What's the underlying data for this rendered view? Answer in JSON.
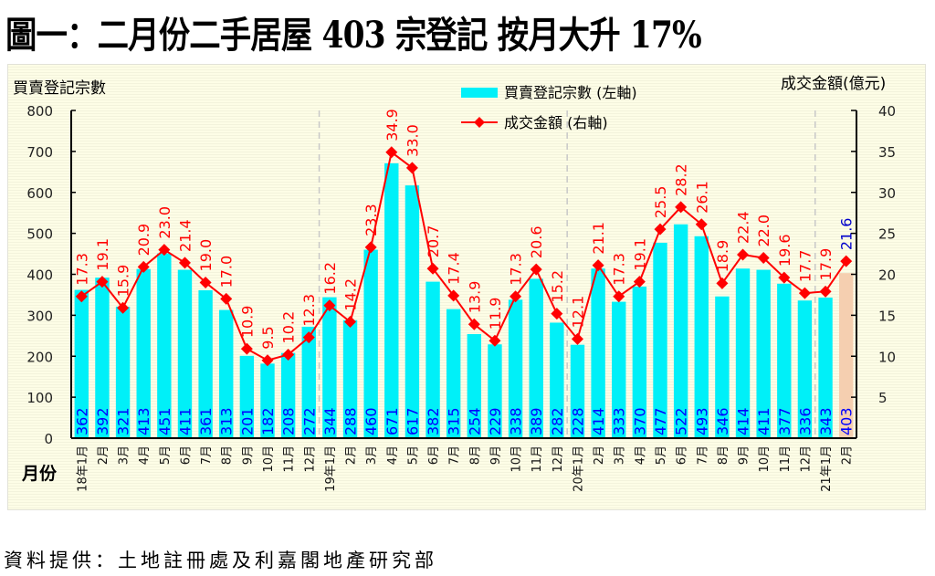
{
  "title": "圖一：二月份二手居屋 403 宗登記  按月大升 17%",
  "source": "資料提供：土地註冊處及利嘉閣地產研究部",
  "colors": {
    "bar": "#00f0f8",
    "bar_highlight": "#f5cfb0",
    "line": "#ff0000",
    "bar_label": "#0000ff",
    "line_label": "#ff0000",
    "line_label_highlight": "#0000cc",
    "divider": "#c8c8c8"
  },
  "chart_data": {
    "type": "bar+line",
    "title": "圖一：二月份二手居屋 403 宗登記  按月大升 17%",
    "xlabel": "月份",
    "ylabel_left": "買賣登記宗數",
    "ylabel_right": "成交金額(億元)",
    "ylim_left": [
      0,
      800
    ],
    "yticks_left": [
      0,
      100,
      200,
      300,
      400,
      500,
      600,
      700,
      800
    ],
    "ylim_right": [
      0,
      40
    ],
    "yticks_right": [
      5,
      10,
      15,
      20,
      25,
      30,
      35,
      40
    ],
    "legend_position": "top-center",
    "grid": false,
    "categories": [
      "18年1月",
      "2月",
      "3月",
      "4月",
      "5月",
      "6月",
      "7月",
      "8月",
      "9月",
      "10月",
      "11月",
      "12月",
      "19年1月",
      "2月",
      "3月",
      "4月",
      "5月",
      "6月",
      "7月",
      "8月",
      "9月",
      "10月",
      "11月",
      "12月",
      "20年1月",
      "2月",
      "3月",
      "4月",
      "5月",
      "6月",
      "7月",
      "8月",
      "9月",
      "10月",
      "11月",
      "12月",
      "21年1月",
      "2月"
    ],
    "year_dividers_before": [
      "19年1月",
      "20年1月",
      "21年1月"
    ],
    "series": [
      {
        "name": "買賣登記宗數 (左軸)",
        "type": "bar",
        "axis": "left",
        "values": [
          362,
          392,
          321,
          413,
          451,
          411,
          361,
          313,
          201,
          182,
          208,
          272,
          344,
          288,
          460,
          671,
          617,
          382,
          315,
          254,
          229,
          338,
          389,
          282,
          228,
          414,
          333,
          370,
          477,
          522,
          493,
          346,
          414,
          411,
          377,
          336,
          343,
          403
        ],
        "labels": [
          "362",
          "392",
          "321",
          "413",
          "451",
          "411",
          "361",
          "313",
          "201",
          "182",
          "208",
          "272",
          "344",
          "288",
          "460",
          "671",
          "617",
          "382",
          "315",
          "254",
          "229",
          "338",
          "389",
          "282",
          "228",
          "414",
          "333",
          "370",
          "477",
          "522",
          "493",
          "346",
          "414",
          "411",
          "377",
          "336",
          "343",
          "403"
        ],
        "highlight_last": true
      },
      {
        "name": "成交金額 (右軸)",
        "type": "line",
        "axis": "right",
        "marker": "diamond",
        "values": [
          17.3,
          19.1,
          15.9,
          20.9,
          23.0,
          21.4,
          19.0,
          17.0,
          10.9,
          9.5,
          10.2,
          12.3,
          16.2,
          14.2,
          23.3,
          34.9,
          33.0,
          20.7,
          17.4,
          13.9,
          11.9,
          17.3,
          20.6,
          15.2,
          12.1,
          21.1,
          17.3,
          19.1,
          25.5,
          28.2,
          26.1,
          18.9,
          22.4,
          22.0,
          19.6,
          17.7,
          17.9,
          21.6
        ],
        "labels": [
          "17.3",
          "19.1",
          "15.9",
          "20.9",
          "23.0",
          "21.4",
          "19.0",
          "17.0",
          "10.9",
          "9.5",
          "10.2",
          "12.3",
          "16.2",
          "14.2",
          "23.3",
          "34.9",
          "33.0",
          "20.7",
          "17.4",
          "13.9",
          "11.9",
          "17.3",
          "20.6",
          "15.2",
          "12.1",
          "21.1",
          "17.3",
          "19.1",
          "25.5",
          "28.2",
          "26.1",
          "18.9",
          "22.4",
          "22.0",
          "19.6",
          "17.7",
          "17.9",
          "21.6"
        ],
        "highlight_last": true
      }
    ]
  }
}
